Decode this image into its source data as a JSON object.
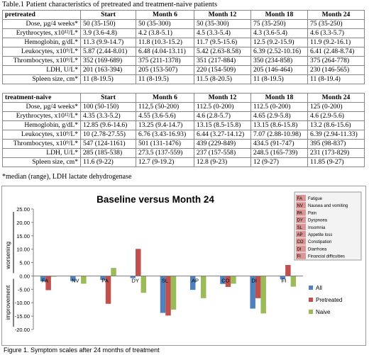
{
  "table": {
    "title": "Table.1 Patient characteristics of pretreated and treatment-naive patients",
    "columns": [
      "Start",
      "Month 6",
      "Month 12",
      "Month 18",
      "Month 24"
    ],
    "groups": [
      {
        "name": "pretreated",
        "rows": [
          {
            "label": "Dose, µg/4 weeks*",
            "values": [
              "50 (35-150)",
              "50 (35-300)",
              "50 (35-300)",
              "75 (35-250)",
              "75 (35-250)"
            ]
          },
          {
            "label": "Erythrocytes, x10¹²/L*",
            "values": [
              "3.9 (3.6-4.8)",
              "4.2 (3.8-5.1)",
              "4.5 (3.3-5.4)",
              "4.3 (3.6-5.4)",
              "4.6 (3.3-5.7)"
            ]
          },
          {
            "label": "Hemoglobin, g/dL*",
            "values": [
              "11.3 (9.9-14.7)",
              "11.8 (10.3-15.2)",
              "11.7 (9.5-15.6)",
              "12.5 (9.2-15.9)",
              "11.9 (9.2-16.1)"
            ]
          },
          {
            "label": "Leukocytes, x10⁹/L*",
            "values": [
              "5.87 (2.44-8.01)",
              "6.48 (4.04-13.11)",
              "5.42 (2.63-8.58)",
              "6.39 (2.52-10.16)",
              "6.41 (2.48-8.74)"
            ]
          },
          {
            "label": "Thrombocytes, x10⁹/L*",
            "values": [
              "352 (169-689)",
              "375 (211-1378)",
              "351 (217-884)",
              "350 (234-858)",
              "375 (264-778)"
            ]
          },
          {
            "label": "LDH, U/L*",
            "values": [
              "201 (163-394)",
              "205 (153-507)",
              "220 (154-509)",
              "205 (146-464)",
              "230 (146-565)"
            ]
          },
          {
            "label": "Spleen size, cm*",
            "values": [
              "11 (8-19.5)",
              "11 (8-19.5)",
              "11.5 (8-20.5)",
              "11 (8-19.5)",
              "11 (8-19.4)"
            ]
          }
        ]
      },
      {
        "name": "treatment-naive",
        "rows": [
          {
            "label": "Dose, µg/4 weeks*",
            "values": [
              "100 (50-150)",
              "112,5 (50-200)",
              "112.5 (0-200)",
              "112.5 (0-200)",
              "125 (0-200)"
            ]
          },
          {
            "label": "Erythrocytes, x10¹²/L*",
            "values": [
              "4.35 (3.3-5.2)",
              "4.55 (3.6-5.6)",
              "4.6 (2.8-5.7)",
              "4.65 (2.9-5.8)",
              "4.6 (2.9-5.6)"
            ]
          },
          {
            "label": "Hemoglobin, g/dL*",
            "values": [
              "12.85 (9.6-14.6)",
              "13.25 (9.4-14.7)",
              "13.15 (8.5-15.8)",
              "13.15 (8.6-15.8)",
              "13.2 (8.6-15.6)"
            ]
          },
          {
            "label": "Leukocytes, x10⁹/L*",
            "values": [
              "10 (2.78-27.55)",
              "6.76 (3.43-16.93)",
              "6.44 (3.27-14.12)",
              "7.07 (2.88-10.98)",
              "6.39 (2.94-11.33)"
            ]
          },
          {
            "label": "Thrombocytes, x10⁹/L*",
            "values": [
              "547 (124-1161)",
              "501 (131-1476)",
              "439 (229-849)",
              "434.5 (91-747)",
              "395 (98-837)"
            ]
          },
          {
            "label": "LDH, U/L*",
            "values": [
              "285 (185-538)",
              "273.5 (137-559)",
              "237 (157-558)",
              "248.5 (165-739)",
              "231 (173-829)"
            ]
          },
          {
            "label": "Spleen size, cm*",
            "values": [
              "11.6 (9-22)",
              "12.7 (9-19.2)",
              "12.8 (9-23)",
              "12 (9-27)",
              "11.85 (9-27)"
            ]
          }
        ]
      }
    ],
    "note": "*median (range), LDH lactate dehydrogenase"
  },
  "chart_data": {
    "type": "bar",
    "title": "Baseline versus Month 24",
    "categories": [
      "FA",
      "NV",
      "PA",
      "DY",
      "SL",
      "AP",
      "CO",
      "DI",
      "FI"
    ],
    "series": [
      {
        "name": "All",
        "color": "#4f81bd",
        "values": [
          -2.0,
          -1.9,
          -1.5,
          -0.8,
          -13.8,
          -5.2,
          -3.0,
          -12.2,
          -1.3
        ]
      },
      {
        "name": "Pretreated",
        "color": "#c0504d",
        "values": [
          -5.3,
          0.0,
          -10.4,
          10.1,
          -14.8,
          0.0,
          -4.1,
          -8.3,
          4.1
        ]
      },
      {
        "name": "Naive",
        "color": "#9bbb59",
        "values": [
          -0.3,
          -2.9,
          3.0,
          -6.3,
          -12.6,
          -8.3,
          -2.9,
          -14.0,
          -4.0
        ]
      }
    ],
    "ylim": [
      -20,
      25
    ],
    "yticks": [
      "25.00",
      "20.00",
      "15.00",
      "10.00",
      "5.00",
      "0.00",
      "-5.00",
      "-10.00",
      "-15.00",
      "-20.00"
    ],
    "y_annotations": {
      "upper": "worsening",
      "lower": "improvement"
    },
    "abbreviations": [
      {
        "code": "FA",
        "meaning": "Fatigue"
      },
      {
        "code": "NV",
        "meaning": "Nausea and vomiting"
      },
      {
        "code": "PA",
        "meaning": "Pain"
      },
      {
        "code": "DY",
        "meaning": "Dyspnoea"
      },
      {
        "code": "SL",
        "meaning": "Insomnia"
      },
      {
        "code": "AP",
        "meaning": "Appetite loss"
      },
      {
        "code": "CO",
        "meaning": "Constipation"
      },
      {
        "code": "DI",
        "meaning": "Diarrhoea"
      },
      {
        "code": "FI",
        "meaning": "Financial difficulties"
      }
    ],
    "abbreviation_box_color": "#d99694",
    "grid": false,
    "legend_position": "right"
  },
  "figure_caption": "Figure 1. Symptom scales after 24 months of treatment"
}
